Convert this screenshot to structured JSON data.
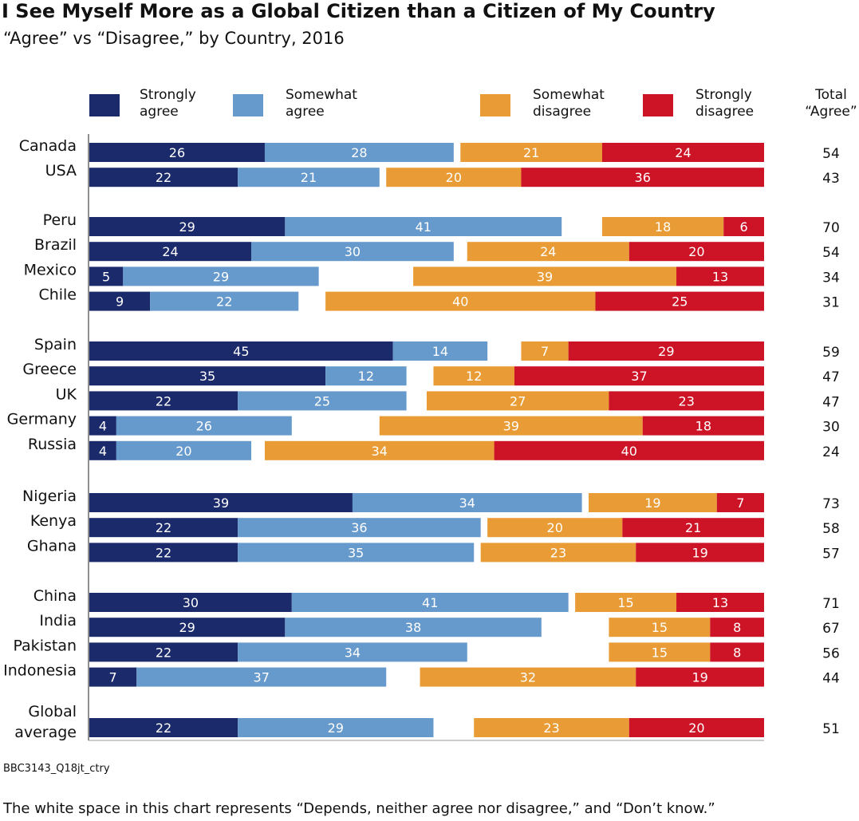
{
  "chart_data": {
    "type": "bar",
    "orientation": "horizontal-diverging-stacked",
    "title": "I See Myself More as a Global Citizen than a Citizen of My Country",
    "subtitle": "“Agree” vs “Disagree,” by Country, 2016",
    "total_header": [
      "Total",
      "“Agree”"
    ],
    "legend": [
      {
        "key": "strongly_agree",
        "lines": [
          "Strongly",
          "agree"
        ],
        "color": "#1b2a6b"
      },
      {
        "key": "somewhat_agree",
        "lines": [
          "Somewhat",
          "agree"
        ],
        "color": "#6699cc"
      },
      {
        "key": "somewhat_disagree",
        "lines": [
          "Somewhat",
          "disagree"
        ],
        "color": "#e99c35"
      },
      {
        "key": "strongly_disagree",
        "lines": [
          "Strongly",
          "disagree"
        ],
        "color": "#cc1426"
      }
    ],
    "groups": [
      {
        "rows": [
          {
            "label": [
              "Canada"
            ],
            "values": [
              26,
              28,
              21,
              24
            ],
            "total": 54
          },
          {
            "label": [
              "USA"
            ],
            "values": [
              22,
              21,
              20,
              36
            ],
            "total": 43
          }
        ]
      },
      {
        "rows": [
          {
            "label": [
              "Peru"
            ],
            "values": [
              29,
              41,
              18,
              6
            ],
            "total": 70
          },
          {
            "label": [
              "Brazil"
            ],
            "values": [
              24,
              30,
              24,
              20
            ],
            "total": 54
          },
          {
            "label": [
              "Mexico"
            ],
            "values": [
              5,
              29,
              39,
              13
            ],
            "total": 34
          },
          {
            "label": [
              "Chile"
            ],
            "values": [
              9,
              22,
              40,
              25
            ],
            "total": 31
          }
        ]
      },
      {
        "rows": [
          {
            "label": [
              "Spain"
            ],
            "values": [
              45,
              14,
              7,
              29
            ],
            "total": 59
          },
          {
            "label": [
              "Greece"
            ],
            "values": [
              35,
              12,
              12,
              37
            ],
            "total": 47
          },
          {
            "label": [
              "UK"
            ],
            "values": [
              22,
              25,
              27,
              23
            ],
            "total": 47
          },
          {
            "label": [
              "Germany"
            ],
            "values": [
              4,
              26,
              39,
              18
            ],
            "total": 30
          },
          {
            "label": [
              "Russia"
            ],
            "values": [
              4,
              20,
              34,
              40
            ],
            "total": 24
          }
        ]
      },
      {
        "rows": [
          {
            "label": [
              "Nigeria"
            ],
            "values": [
              39,
              34,
              19,
              7
            ],
            "total": 73
          },
          {
            "label": [
              "Kenya"
            ],
            "values": [
              22,
              36,
              20,
              21
            ],
            "total": 58
          },
          {
            "label": [
              "Ghana"
            ],
            "values": [
              22,
              35,
              23,
              19
            ],
            "total": 57
          }
        ]
      },
      {
        "rows": [
          {
            "label": [
              "China"
            ],
            "values": [
              30,
              41,
              15,
              13
            ],
            "total": 71
          },
          {
            "label": [
              "India"
            ],
            "values": [
              29,
              38,
              15,
              8
            ],
            "total": 67
          },
          {
            "label": [
              "Pakistan"
            ],
            "values": [
              22,
              34,
              15,
              8
            ],
            "total": 56
          },
          {
            "label": [
              "Indonesia"
            ],
            "values": [
              7,
              37,
              32,
              19
            ],
            "total": 44
          }
        ]
      },
      {
        "rows": [
          {
            "label": [
              "Global",
              "average"
            ],
            "values": [
              22,
              29,
              23,
              20
            ],
            "total": 51
          }
        ]
      }
    ],
    "xlim": [
      0,
      100
    ]
  },
  "footnote_code": "BBC3143_Q18jt_ctry",
  "footnote_text": "The white space in this chart represents “Depends, neither agree nor disagree,” and “Don’t know.”"
}
